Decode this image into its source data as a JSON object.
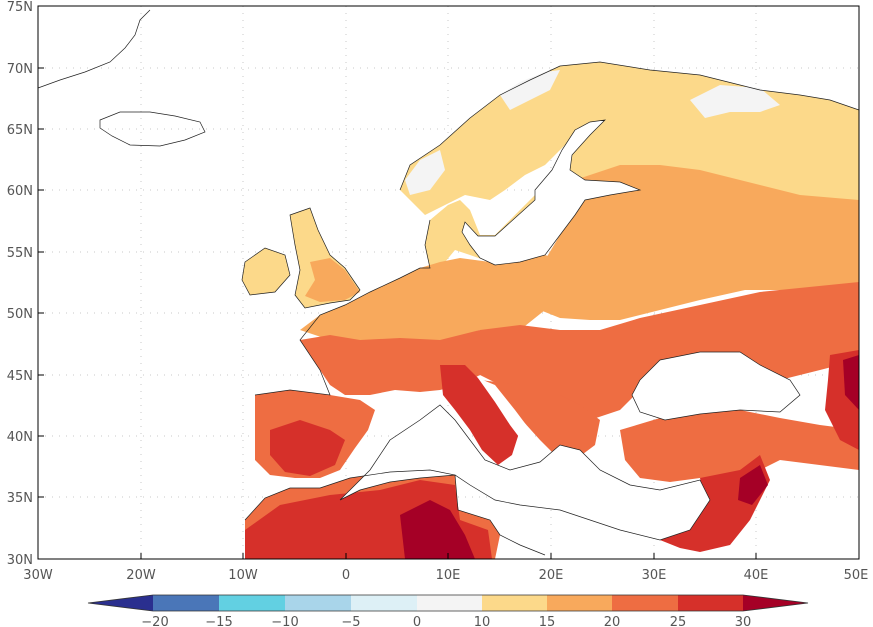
{
  "map": {
    "lat_labels": [
      "75N",
      "70N",
      "65N",
      "60N",
      "55N",
      "50N",
      "45N",
      "40N",
      "35N",
      "30N"
    ],
    "lon_labels": [
      "30W",
      "20W",
      "10W",
      "0",
      "10E",
      "20E",
      "30E",
      "40E",
      "50E"
    ]
  },
  "legend": {
    "ticks": [
      "−20",
      "−15",
      "−10",
      "−5",
      "0",
      "10",
      "15",
      "20",
      "25",
      "30"
    ],
    "colors": [
      "#2a2f8f",
      "#4a76b8",
      "#62d0e2",
      "#a9d5ea",
      "#ddf0f6",
      "#f4f4f4",
      "#fcd98a",
      "#f8a95c",
      "#ee6d42",
      "#d6302a",
      "#a50026"
    ]
  }
}
